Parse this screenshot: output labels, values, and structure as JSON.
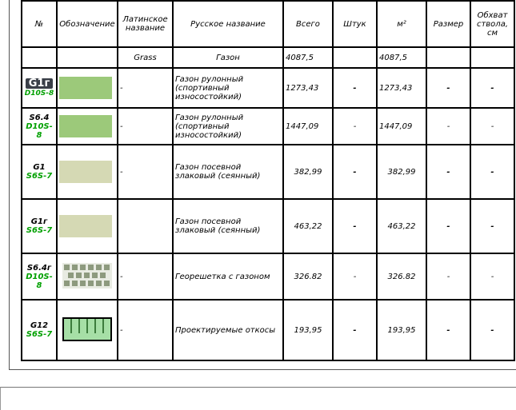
{
  "headers": {
    "num": "№",
    "designation": "Обозначение",
    "latin": "Латинское название",
    "russian": "Русское название",
    "total": "Всего",
    "pcs": "Штук",
    "m2": "м²",
    "size": "Размер",
    "girth": "Обхват ствола, см"
  },
  "group": {
    "latin": "Grass",
    "russian": "Газон",
    "total": "4087,5",
    "m2": "4087,5"
  },
  "rows": [
    {
      "code": "G1г",
      "sub": "D10S-8",
      "swatch": "lawn-green",
      "latin": "-",
      "russian": "Газон рулонный (спортивный износостойкий)",
      "total": "1273,43",
      "pcs": "-",
      "m2": "1273,43",
      "size": "-",
      "girth": "-"
    },
    {
      "code": "S6.4",
      "sub": "D10S-8",
      "swatch": "lawn-green",
      "latin": "-",
      "russian": "Газон рулонный (спортивный износостойкий)",
      "total": "1447,09",
      "pcs": "-",
      "m2": "1447,09",
      "size": "-",
      "girth": "-"
    },
    {
      "code": "G1",
      "sub": "S6S-7",
      "swatch": "lawn-beige",
      "latin": "-",
      "russian": "Газон посевной злаковый (сеянный)",
      "total": "382,99",
      "pcs": "-",
      "m2": "382,99",
      "size": "-",
      "girth": "-"
    },
    {
      "code": "G1г",
      "sub": "S6S-7",
      "swatch": "lawn-beige",
      "latin": "",
      "russian": "Газон посевной злаковый (сеянный)",
      "total": "463,22",
      "pcs": "-",
      "m2": "463,22",
      "size": "-",
      "girth": "-"
    },
    {
      "code": "S6.4г",
      "sub": "D10S-8",
      "swatch": "geogrid",
      "latin": "-",
      "russian": "Георешетка с газоном",
      "total": "326.82",
      "pcs": "-",
      "m2": "326.82",
      "size": "-",
      "girth": "-"
    },
    {
      "code": "G12",
      "sub": "S6S-7",
      "swatch": "slope",
      "latin": "-",
      "russian": "Проектируемые откосы",
      "total": "193,95",
      "pcs": "-",
      "m2": "193,95",
      "size": "-",
      "girth": "-"
    }
  ],
  "overlay_tag": "G1г",
  "colors": {
    "lawn_green": "#9cc97a",
    "lawn_beige": "#d5d9b4",
    "geogrid": "#9aa58c",
    "slope_border": "#1a5a1a",
    "slope_fill": "#a6dfa6",
    "sub_code": "#00a000"
  }
}
